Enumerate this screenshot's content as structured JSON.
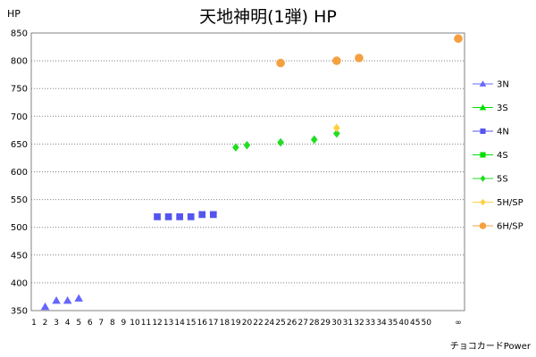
{
  "chart_data": {
    "type": "scatter",
    "title": "天地神明(1弾) HP",
    "ylabel": "HP",
    "xlabel": "チョコカードPower",
    "ylim": [
      350,
      850
    ],
    "yticks": [
      350,
      400,
      450,
      500,
      550,
      600,
      650,
      700,
      750,
      800,
      850
    ],
    "x_categories": [
      "1",
      "2",
      "3",
      "4",
      "5",
      "6",
      "7",
      "8",
      "9",
      "10",
      "11",
      "12",
      "13",
      "14",
      "15",
      "16",
      "17",
      "18",
      "19",
      "20",
      "22",
      "24",
      "25",
      "26",
      "27",
      "28",
      "29",
      "30",
      "31",
      "32",
      "33",
      "34",
      "35",
      "40",
      "45",
      "50",
      "∞"
    ],
    "grid": "horizontal-dotted",
    "legend": "right",
    "series": [
      {
        "name": "3N",
        "color": "#6666ff",
        "marker": "triangle",
        "x": [
          "2",
          "3",
          "4",
          "5"
        ],
        "y": [
          357,
          368,
          368,
          372
        ]
      },
      {
        "name": "3S",
        "color": "#00dd00",
        "marker": "triangle",
        "x": [],
        "y": []
      },
      {
        "name": "4N",
        "color": "#5555ee",
        "marker": "square",
        "x": [
          "12",
          "13",
          "14",
          "15",
          "16",
          "17"
        ],
        "y": [
          519,
          519,
          519,
          519,
          523,
          523
        ]
      },
      {
        "name": "4S",
        "color": "#00dd00",
        "marker": "square",
        "x": [],
        "y": []
      },
      {
        "name": "5S",
        "color": "#22dd22",
        "marker": "diamond",
        "x": [
          "19",
          "20",
          "25",
          "28",
          "30"
        ],
        "y": [
          644,
          648,
          653,
          658,
          669
        ]
      },
      {
        "name": "5H/SP",
        "color": "#ffd040",
        "marker": "diamond",
        "x": [
          "30"
        ],
        "y": [
          679
        ]
      },
      {
        "name": "6H/SP",
        "color": "#f5a040",
        "marker": "circle",
        "x": [
          "25",
          "30",
          "32",
          "∞"
        ],
        "y": [
          796,
          800,
          805,
          840
        ]
      }
    ]
  }
}
